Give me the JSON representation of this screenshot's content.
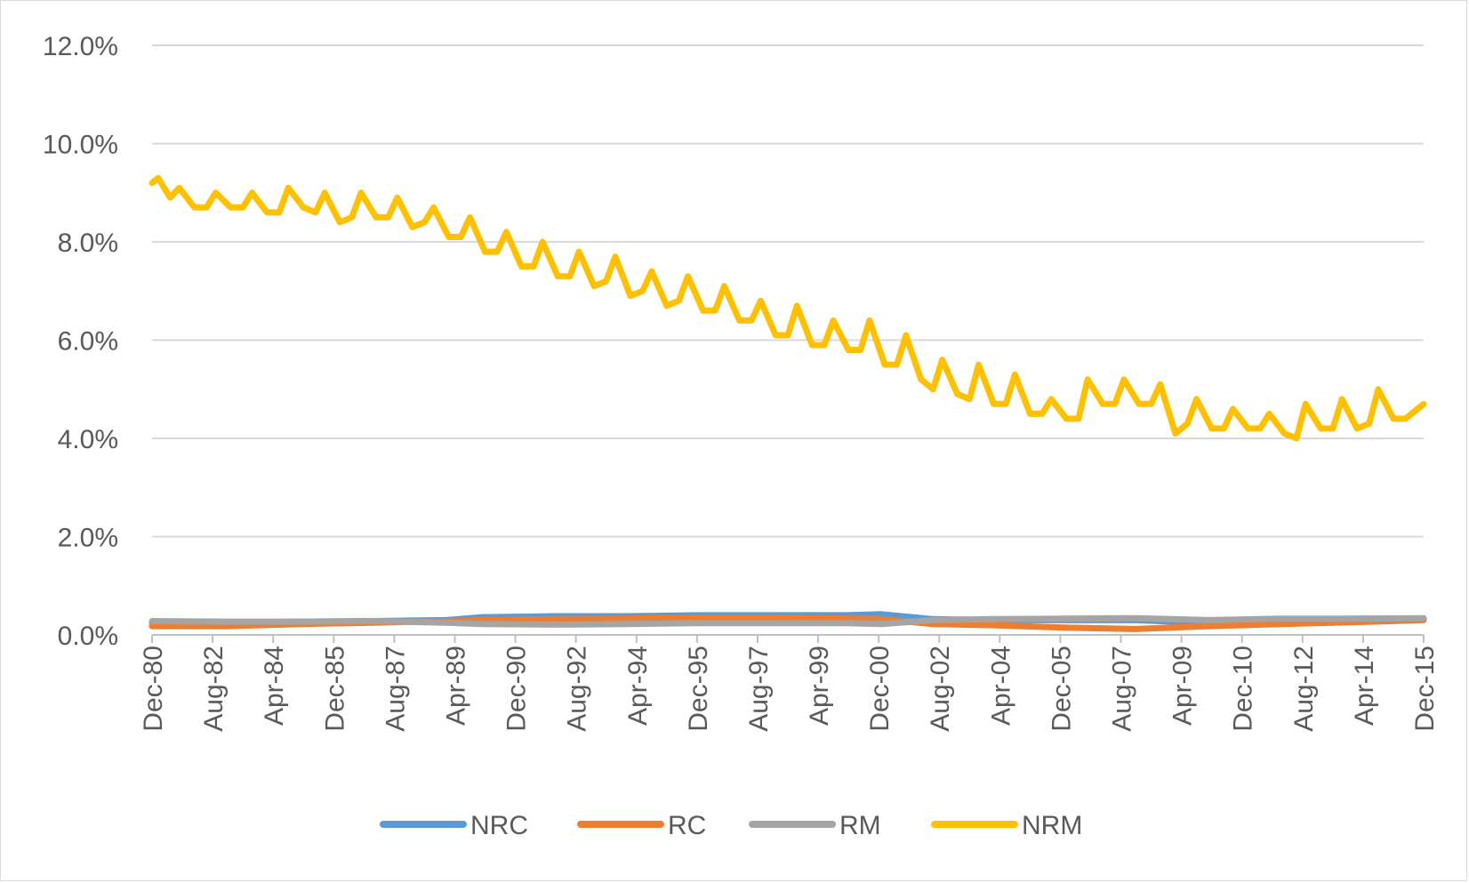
{
  "chart_data": {
    "type": "line",
    "title": "",
    "xlabel": "",
    "ylabel": "",
    "ylim": [
      0,
      0.12
    ],
    "y_ticks": [
      "0.0%",
      "2.0%",
      "4.0%",
      "6.0%",
      "8.0%",
      "10.0%",
      "12.0%"
    ],
    "y_tick_values": [
      0,
      0.02,
      0.04,
      0.06,
      0.08,
      0.1,
      0.12
    ],
    "x_ticks": [
      "Dec-80",
      "Aug-82",
      "Apr-84",
      "Dec-85",
      "Aug-87",
      "Apr-89",
      "Dec-90",
      "Aug-92",
      "Apr-94",
      "Dec-95",
      "Aug-97",
      "Apr-99",
      "Dec-00",
      "Aug-02",
      "Apr-04",
      "Dec-05",
      "Aug-07",
      "Apr-09",
      "Dec-10",
      "Aug-12",
      "Apr-14",
      "Dec-15"
    ],
    "x_range": [
      "1980-12",
      "2015-12"
    ],
    "grid": true,
    "legend_position": "bottom",
    "series": [
      {
        "name": "NRC",
        "color": "#5b9bd5",
        "x": [
          "1980-12",
          "1983-01",
          "1985-01",
          "1987-01",
          "1989-01",
          "1990-01",
          "1992-01",
          "1994-01",
          "1996-01",
          "1998-01",
          "2000-01",
          "2001-01",
          "2002-06",
          "2004-01",
          "2006-01",
          "2008-01",
          "2010-01",
          "2012-01",
          "2014-01",
          "2015-12"
        ],
        "y": [
          0.0025,
          0.0025,
          0.0027,
          0.0028,
          0.003,
          0.0036,
          0.0038,
          0.0038,
          0.004,
          0.004,
          0.004,
          0.0042,
          0.0032,
          0.003,
          0.003,
          0.003,
          0.0024,
          0.0028,
          0.0033,
          0.0033
        ]
      },
      {
        "name": "RC",
        "color": "#ed7d31",
        "x": [
          "1980-12",
          "1983-01",
          "1985-01",
          "1987-01",
          "1989-01",
          "1990-01",
          "1992-01",
          "1994-01",
          "1996-01",
          "1998-01",
          "2000-01",
          "2001-01",
          "2002-06",
          "2004-01",
          "2006-01",
          "2008-01",
          "2010-01",
          "2012-01",
          "2014-01",
          "2015-12"
        ],
        "y": [
          0.0018,
          0.0018,
          0.0022,
          0.0025,
          0.0028,
          0.003,
          0.0032,
          0.0033,
          0.0035,
          0.0035,
          0.0033,
          0.0032,
          0.0022,
          0.002,
          0.0015,
          0.0012,
          0.0018,
          0.0022,
          0.0026,
          0.003
        ]
      },
      {
        "name": "RM",
        "color": "#a5a5a5",
        "x": [
          "1980-12",
          "1983-01",
          "1985-01",
          "1987-01",
          "1989-01",
          "1990-01",
          "1992-01",
          "1994-01",
          "1996-01",
          "1998-01",
          "2000-01",
          "2001-01",
          "2002-06",
          "2004-01",
          "2006-01",
          "2008-01",
          "2010-01",
          "2012-01",
          "2014-01",
          "2015-12"
        ],
        "y": [
          0.0028,
          0.0027,
          0.0027,
          0.0028,
          0.0025,
          0.0022,
          0.0021,
          0.0022,
          0.0024,
          0.0024,
          0.0024,
          0.0022,
          0.003,
          0.0032,
          0.0033,
          0.0034,
          0.003,
          0.0033,
          0.0033,
          0.0034
        ]
      },
      {
        "name": "NRM",
        "color": "#ffc000",
        "x": [
          "1980-12",
          "1981-02",
          "1981-06",
          "1981-09",
          "1982-02",
          "1982-06",
          "1982-09",
          "1983-02",
          "1983-06",
          "1983-09",
          "1984-02",
          "1984-06",
          "1984-09",
          "1985-02",
          "1985-06",
          "1985-09",
          "1986-02",
          "1986-06",
          "1986-09",
          "1987-02",
          "1987-06",
          "1987-09",
          "1988-02",
          "1988-06",
          "1988-09",
          "1989-02",
          "1989-06",
          "1989-09",
          "1990-02",
          "1990-06",
          "1990-09",
          "1991-02",
          "1991-06",
          "1991-09",
          "1992-02",
          "1992-06",
          "1992-09",
          "1993-02",
          "1993-06",
          "1993-09",
          "1994-02",
          "1994-06",
          "1994-09",
          "1995-02",
          "1995-06",
          "1995-09",
          "1996-02",
          "1996-06",
          "1996-09",
          "1997-02",
          "1997-06",
          "1997-09",
          "1998-02",
          "1998-06",
          "1998-09",
          "1999-02",
          "1999-06",
          "1999-09",
          "2000-02",
          "2000-06",
          "2000-09",
          "2001-02",
          "2001-06",
          "2001-09",
          "2002-02",
          "2002-06",
          "2002-09",
          "2003-02",
          "2003-06",
          "2003-09",
          "2004-02",
          "2004-06",
          "2004-09",
          "2005-02",
          "2005-06",
          "2005-09",
          "2006-02",
          "2006-06",
          "2006-09",
          "2007-02",
          "2007-06",
          "2007-09",
          "2008-02",
          "2008-06",
          "2008-09",
          "2009-02",
          "2009-06",
          "2009-09",
          "2010-02",
          "2010-06",
          "2010-09",
          "2011-02",
          "2011-06",
          "2011-09",
          "2012-02",
          "2012-06",
          "2012-09",
          "2013-02",
          "2013-06",
          "2013-09",
          "2014-02",
          "2014-06",
          "2014-09",
          "2015-02",
          "2015-06",
          "2015-12"
        ],
        "y": [
          0.092,
          0.093,
          0.089,
          0.091,
          0.087,
          0.087,
          0.09,
          0.087,
          0.087,
          0.09,
          0.086,
          0.086,
          0.091,
          0.087,
          0.086,
          0.09,
          0.084,
          0.085,
          0.09,
          0.085,
          0.085,
          0.089,
          0.083,
          0.084,
          0.087,
          0.081,
          0.081,
          0.085,
          0.078,
          0.078,
          0.082,
          0.075,
          0.075,
          0.08,
          0.073,
          0.073,
          0.078,
          0.071,
          0.072,
          0.077,
          0.069,
          0.07,
          0.074,
          0.067,
          0.068,
          0.073,
          0.066,
          0.066,
          0.071,
          0.064,
          0.064,
          0.068,
          0.061,
          0.061,
          0.067,
          0.059,
          0.059,
          0.064,
          0.058,
          0.058,
          0.064,
          0.055,
          0.055,
          0.061,
          0.052,
          0.05,
          0.056,
          0.049,
          0.048,
          0.055,
          0.047,
          0.047,
          0.053,
          0.045,
          0.045,
          0.048,
          0.044,
          0.044,
          0.052,
          0.047,
          0.047,
          0.052,
          0.047,
          0.047,
          0.051,
          0.041,
          0.043,
          0.048,
          0.042,
          0.042,
          0.046,
          0.042,
          0.042,
          0.045,
          0.041,
          0.04,
          0.047,
          0.042,
          0.042,
          0.048,
          0.042,
          0.043,
          0.05,
          0.044,
          0.044,
          0.047
        ]
      }
    ]
  }
}
